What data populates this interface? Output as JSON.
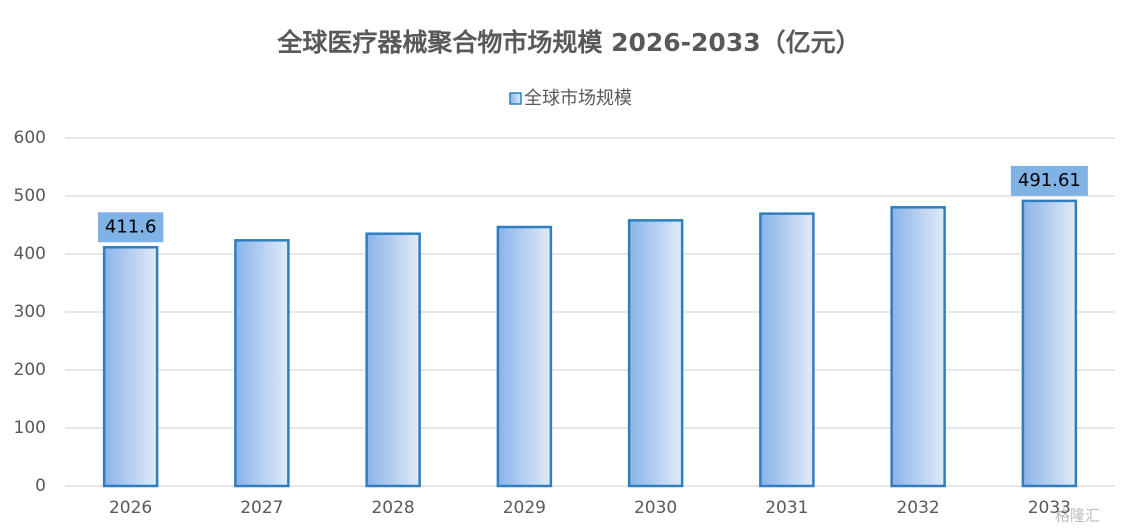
{
  "chart_data": {
    "type": "bar",
    "title": "全球医疗器械聚合物市场规模 2026-2033（亿元）",
    "categories": [
      "2026",
      "2027",
      "2028",
      "2029",
      "2030",
      "2031",
      "2032",
      "2033"
    ],
    "series": [
      {
        "name": "全球市场规模",
        "color": "#2e7fc0",
        "values": [
          411.6,
          423.6,
          435,
          446.5,
          458,
          469.6,
          480.5,
          491.61
        ],
        "value_labels": [
          "411.6",
          null,
          null,
          null,
          null,
          null,
          null,
          "491.61"
        ]
      }
    ],
    "ylim": [
      0,
      600
    ],
    "yticks": [
      0,
      100,
      200,
      300,
      400,
      500,
      600
    ],
    "grid": true,
    "legend": "top",
    "watermark": "格隆汇"
  }
}
